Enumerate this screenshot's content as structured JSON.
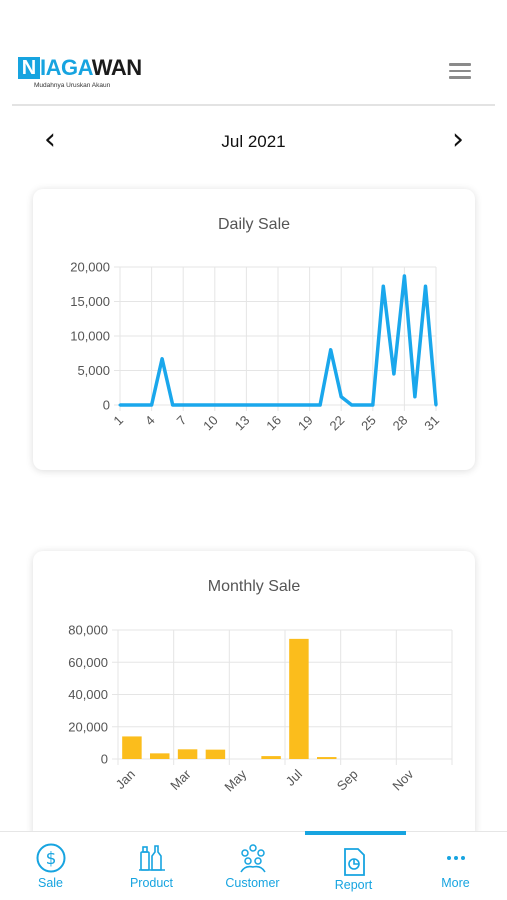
{
  "header": {
    "logo_box_letter": "N",
    "logo_blue_text": "IAGA",
    "logo_dark_text": "WAN",
    "tagline": "Mudahnya Uruskan Akaun"
  },
  "month_nav": {
    "label": "Jul 2021",
    "prev_glyph": "‹",
    "next_glyph": "›"
  },
  "daily_card": {
    "title": "Daily Sale"
  },
  "monthly_card": {
    "title": "Monthly Sale"
  },
  "bottom_nav": {
    "items": [
      {
        "label": "Sale",
        "icon": "dollar-circle-icon"
      },
      {
        "label": "Product",
        "icon": "bottles-icon"
      },
      {
        "label": "Customer",
        "icon": "people-group-icon"
      },
      {
        "label": "Report",
        "icon": "report-document-icon",
        "active": true
      },
      {
        "label": "More",
        "icon": "more-dots-icon"
      }
    ]
  },
  "colors": {
    "accent": "#17a4e0",
    "daily_line": "#1aa7ec",
    "monthly_bar": "#fbbd1c",
    "grid": "#e5e5e5"
  },
  "chart_data": [
    {
      "type": "line",
      "title": "Daily Sale",
      "x": [
        1,
        2,
        3,
        4,
        5,
        6,
        7,
        8,
        9,
        10,
        11,
        12,
        13,
        14,
        15,
        16,
        17,
        18,
        19,
        20,
        21,
        22,
        23,
        24,
        25,
        26,
        27,
        28,
        29,
        30,
        31
      ],
      "x_tick_labels": [
        "1",
        "4",
        "7",
        "10",
        "13",
        "16",
        "19",
        "22",
        "25",
        "28",
        "31"
      ],
      "series": [
        {
          "values": [
            0,
            0,
            0,
            0,
            6700,
            0,
            0,
            0,
            0,
            0,
            0,
            0,
            0,
            0,
            0,
            0,
            0,
            0,
            0,
            0,
            8000,
            1200,
            0,
            0,
            0,
            17200,
            4500,
            18700,
            1200,
            17200,
            0
          ]
        }
      ],
      "ylim": [
        0,
        20000
      ],
      "y_ticks": [
        "0",
        "5,000",
        "10,000",
        "15,000",
        "20,000"
      ],
      "grid": true
    },
    {
      "type": "bar",
      "title": "Monthly Sale",
      "categories": [
        "Jan",
        "Feb",
        "Mar",
        "Apr",
        "May",
        "Jun",
        "Jul",
        "Aug",
        "Sep",
        "Oct",
        "Nov",
        "Dec"
      ],
      "x_tick_labels": [
        "Jan",
        "Mar",
        "May",
        "Jul",
        "Sep",
        "Nov"
      ],
      "series": [
        {
          "values": [
            14000,
            3500,
            6000,
            5800,
            0,
            1800,
            74500,
            1200,
            0,
            0,
            0,
            0
          ]
        }
      ],
      "ylim": [
        0,
        80000
      ],
      "y_ticks": [
        "0",
        "20,000",
        "40,000",
        "60,000",
        "80,000"
      ],
      "grid": true
    }
  ]
}
